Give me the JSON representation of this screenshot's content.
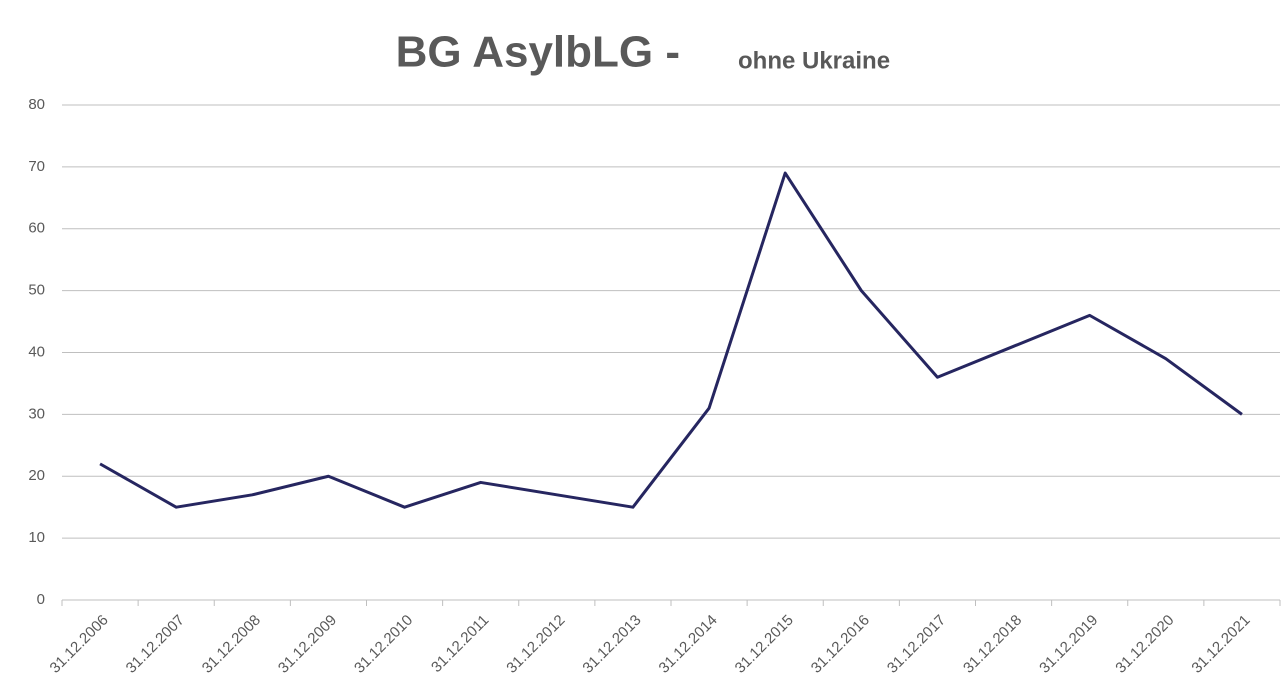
{
  "chart_data": {
    "type": "line",
    "title": "BG AsylbLG  -",
    "subtitle": "ohne Ukraine",
    "categories": [
      "31.12.2006",
      "31.12.2007",
      "31.12.2008",
      "31.12.2009",
      "31.12.2010",
      "31.12.2011",
      "31.12.2012",
      "31.12.2013",
      "31.12.2014",
      "31.12.2015",
      "31.12.2016",
      "31.12.2017",
      "31.12.2018",
      "31.12.2019",
      "31.12.2020",
      "31.12.2021"
    ],
    "series": [
      {
        "name": "BG AsylbLG",
        "color": "#262660",
        "values": [
          22,
          15,
          17,
          20,
          15,
          19,
          17,
          15,
          31,
          69,
          50,
          36,
          41,
          46,
          39,
          30
        ]
      }
    ],
    "ylim": [
      0,
      80
    ],
    "yticks": [
      0,
      10,
      20,
      30,
      40,
      50,
      60,
      70,
      80
    ],
    "grid": true
  }
}
